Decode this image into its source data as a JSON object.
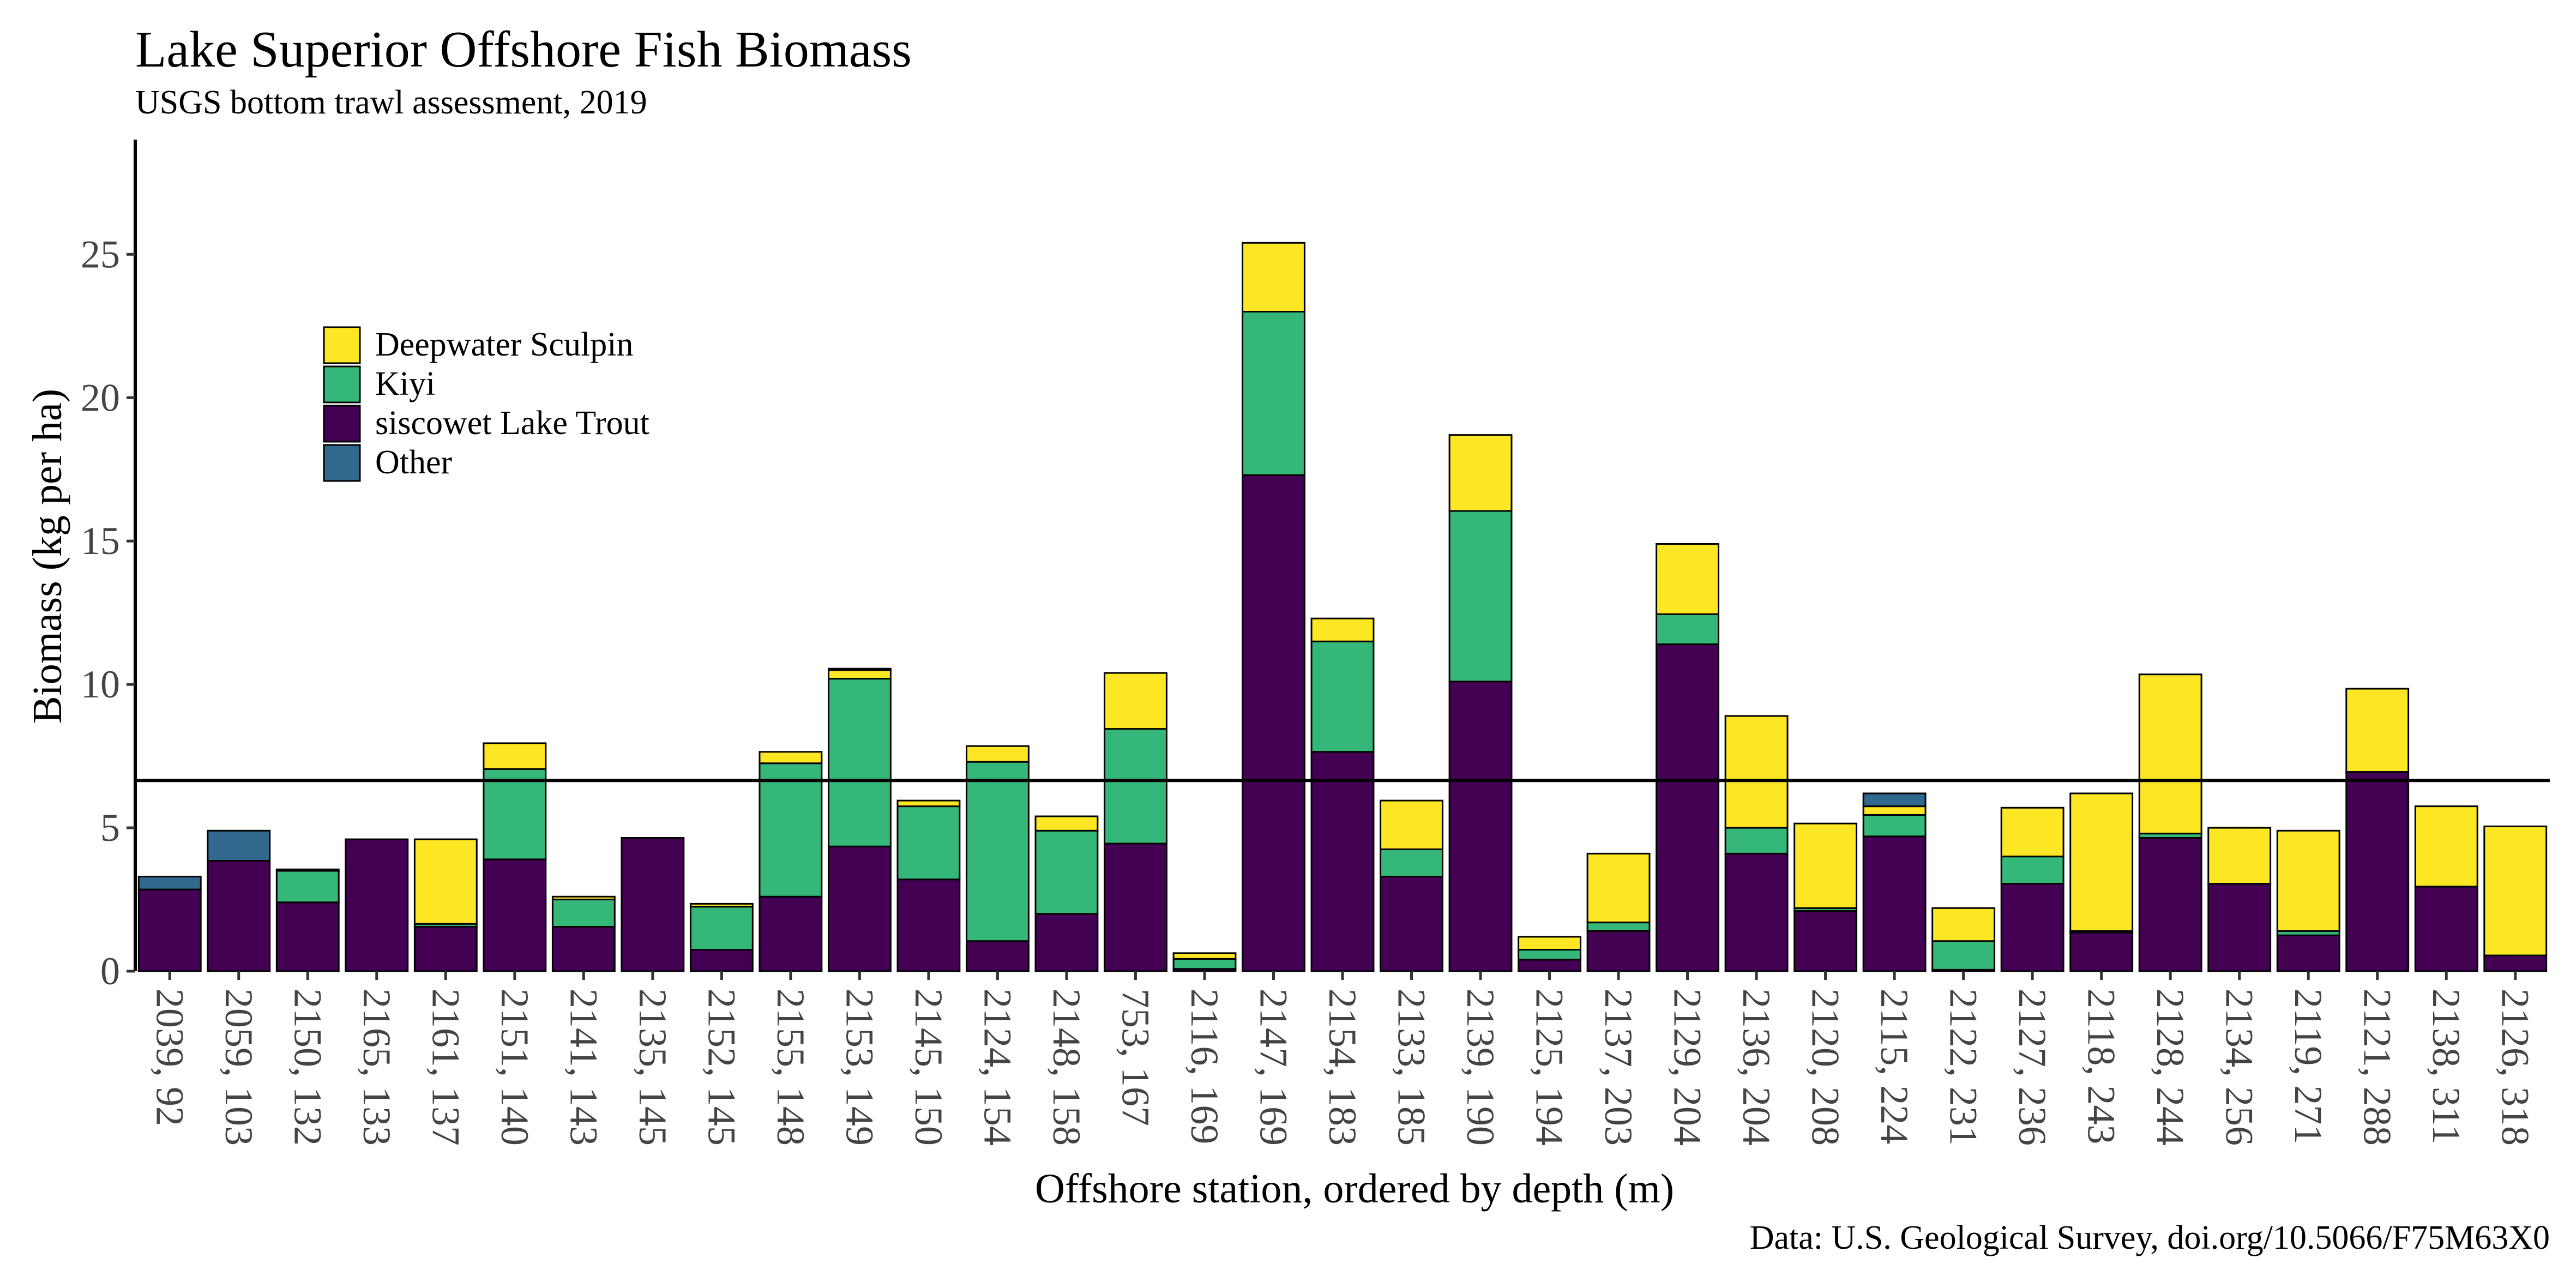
{
  "chart_data": {
    "type": "bar",
    "stacked": true,
    "title": "Lake Superior Offshore Fish Biomass",
    "subtitle": "USGS bottom trawl assessment,  2019",
    "xlabel": "Offshore station, ordered by depth (m)",
    "ylabel": "Biomass (kg per ha)",
    "caption": "Data: U.S. Geological Survey, doi.org/10.5066/F75M63X0",
    "ylim": [
      0,
      29
    ],
    "yticks": [
      0,
      5,
      10,
      15,
      20,
      25
    ],
    "grid": false,
    "legend_position": "top-left",
    "reference_line": {
      "value": 6.65
    },
    "categories": [
      "2039, 92",
      "2059, 103",
      "2150, 132",
      "2165, 133",
      "2161, 137",
      "2151, 140",
      "2141, 143",
      "2135, 145",
      "2152, 145",
      "2155, 148",
      "2153, 149",
      "2145, 150",
      "2124, 154",
      "2148, 158",
      "753, 167",
      "2116, 169",
      "2147, 169",
      "2154, 183",
      "2133, 185",
      "2139, 190",
      "2125, 194",
      "2137, 203",
      "2129, 204",
      "2136, 204",
      "2120, 208",
      "2115, 224",
      "2122, 231",
      "2127, 236",
      "2118, 243",
      "2128, 244",
      "2134, 256",
      "2119, 271",
      "2121, 288",
      "2138, 311",
      "2126, 318"
    ],
    "series": [
      {
        "name": "siscowet Lake Trout",
        "color": "#440154",
        "values": [
          2.85,
          3.85,
          2.4,
          4.6,
          1.55,
          3.9,
          1.55,
          4.65,
          0.75,
          2.6,
          4.35,
          3.2,
          1.05,
          2.0,
          4.45,
          0.08,
          17.3,
          7.65,
          3.3,
          10.1,
          0.4,
          1.4,
          11.4,
          4.1,
          2.1,
          4.7,
          0.05,
          3.05,
          1.35,
          4.65,
          3.05,
          1.25,
          6.95,
          2.95,
          0.55
        ]
      },
      {
        "name": "Kiyi",
        "color": "#35B779",
        "values": [
          0,
          0,
          1.1,
          0,
          0.1,
          3.15,
          0.95,
          0,
          1.5,
          4.65,
          5.85,
          2.55,
          6.25,
          2.9,
          4.0,
          0.35,
          5.7,
          3.85,
          0.95,
          5.95,
          0.35,
          0.3,
          1.05,
          0.9,
          0.1,
          0.75,
          1.0,
          0.95,
          0.05,
          0.15,
          0,
          0.15,
          0,
          0,
          0
        ]
      },
      {
        "name": "Deepwater Sculpin",
        "color": "#FDE725",
        "values": [
          0,
          0,
          0.05,
          0,
          2.95,
          0.9,
          0.1,
          0,
          0.1,
          0.4,
          0.3,
          0.2,
          0.55,
          0.5,
          1.95,
          0.2,
          2.4,
          0.8,
          1.7,
          2.65,
          0.45,
          2.4,
          2.45,
          3.9,
          2.95,
          0.3,
          1.15,
          1.7,
          4.8,
          5.55,
          1.95,
          3.5,
          2.9,
          2.8,
          4.5
        ]
      },
      {
        "name": "Other",
        "color": "#31688E",
        "values": [
          0.45,
          1.05,
          0,
          0,
          0,
          0,
          0,
          0,
          0,
          0,
          0.05,
          0,
          0,
          0,
          0,
          0,
          0,
          0,
          0,
          0,
          0,
          0,
          0,
          0,
          0,
          0.45,
          0,
          0,
          0,
          0,
          0,
          0,
          0,
          0,
          0
        ]
      }
    ],
    "legend_order": [
      "Deepwater Sculpin",
      "Kiyi",
      "siscowet Lake Trout",
      "Other"
    ]
  }
}
